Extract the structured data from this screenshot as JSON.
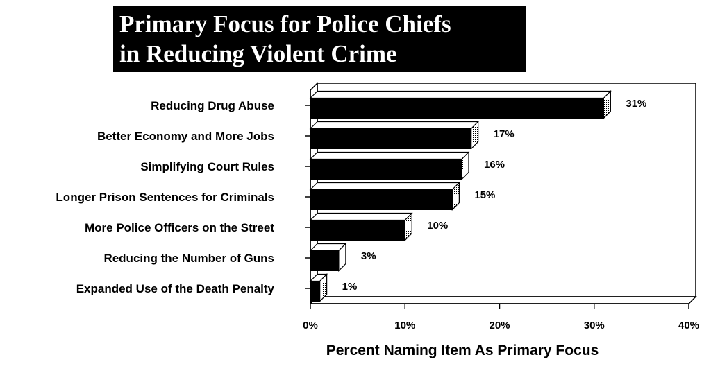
{
  "title_lines": [
    "Primary Focus for Police Chiefs",
    "in Reducing Violent Crime"
  ],
  "chart_data": {
    "type": "bar",
    "orientation": "horizontal",
    "title": "Primary Focus for Police Chiefs in Reducing Violent Crime",
    "xlabel": "Percent Naming Item As Primary Focus",
    "ylabel": "",
    "xlim": [
      0,
      40
    ],
    "x_ticks": [
      0,
      10,
      20,
      30,
      40
    ],
    "x_tick_labels": [
      "0%",
      "10%",
      "20%",
      "30%",
      "40%"
    ],
    "categories": [
      "Reducing Drug Abuse",
      "Better Economy and More Jobs",
      "Simplifying Court Rules",
      "Longer Prison Sentences for Criminals",
      "More Police Officers on the Street",
      "Reducing the Number of Guns",
      "Expanded Use of the Death Penalty"
    ],
    "values": [
      31,
      17,
      16,
      15,
      10,
      3,
      1
    ],
    "value_labels": [
      "31%",
      "17%",
      "16%",
      "15%",
      "10%",
      "3%",
      "1%"
    ],
    "grid": false,
    "legend": "none",
    "bar_style": "3d",
    "colors": {
      "bar": "#000000",
      "bar_top": "#ffffff",
      "bar_side": "#ffffff",
      "title_bg": "#000000",
      "title_text": "#ffffff"
    }
  }
}
